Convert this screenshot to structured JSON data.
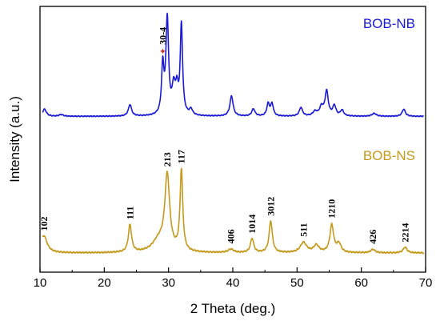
{
  "chart_data": {
    "type": "line",
    "xlabel": "2 Theta (deg.)",
    "ylabel": "Intensity (a.u.)",
    "xlim": [
      10,
      70
    ],
    "x_ticks": [
      "10",
      "20",
      "30",
      "40",
      "50",
      "60",
      "70"
    ],
    "grid": false,
    "colors": {
      "BOB-NB": "#1a1ad6",
      "BOB-NS": "#c49a1c",
      "marker": "#c0392b"
    },
    "series": [
      {
        "name": "BOB-NB",
        "baseline": 0.35,
        "noise": 0.02,
        "peaks": [
          [
            10.7,
            0.25,
            0.35
          ],
          [
            13.3,
            0.06,
            0.4
          ],
          [
            24.0,
            0.4,
            0.3
          ],
          [
            29.1,
            1.65,
            0.22
          ],
          [
            29.8,
            3.3,
            0.25
          ],
          [
            30.8,
            0.9,
            0.3
          ],
          [
            31.3,
            0.8,
            0.25
          ],
          [
            32.0,
            3.1,
            0.22
          ],
          [
            33.5,
            0.2,
            0.3
          ],
          [
            39.8,
            0.7,
            0.3
          ],
          [
            43.2,
            0.25,
            0.3
          ],
          [
            45.5,
            0.42,
            0.25
          ],
          [
            46.1,
            0.42,
            0.25
          ],
          [
            50.6,
            0.3,
            0.3
          ],
          [
            52.8,
            0.15,
            0.4
          ],
          [
            53.8,
            0.3,
            0.35
          ],
          [
            54.6,
            0.85,
            0.3
          ],
          [
            55.8,
            0.35,
            0.3
          ],
          [
            57.0,
            0.2,
            0.3
          ],
          [
            62.0,
            0.1,
            0.4
          ],
          [
            66.6,
            0.25,
            0.3
          ]
        ]
      },
      {
        "name": "BOB-NS",
        "baseline": 0.25,
        "noise": 0.03,
        "peaks": [
          [
            10.6,
            0.6,
            0.6
          ],
          [
            24.0,
            0.95,
            0.3
          ],
          [
            28.5,
            0.4,
            1.2
          ],
          [
            29.8,
            2.6,
            0.45
          ],
          [
            32.0,
            2.8,
            0.25
          ],
          [
            39.7,
            0.12,
            0.5
          ],
          [
            43.0,
            0.5,
            0.3
          ],
          [
            45.9,
            1.1,
            0.3
          ],
          [
            51.0,
            0.35,
            0.6
          ],
          [
            53.0,
            0.25,
            0.5
          ],
          [
            55.4,
            0.95,
            0.35
          ],
          [
            56.5,
            0.3,
            0.4
          ],
          [
            61.8,
            0.12,
            0.4
          ],
          [
            66.8,
            0.2,
            0.35
          ]
        ]
      }
    ],
    "legend": [
      "BOB-NB",
      "BOB-NS"
    ],
    "annotations": [
      {
        "text": "30-4",
        "x": 29.1,
        "series": "BOB-NB",
        "marker": "star"
      },
      {
        "text": "102",
        "x": 10.6,
        "series": "BOB-NS"
      },
      {
        "text": "111",
        "x": 24.0,
        "series": "BOB-NS"
      },
      {
        "text": "213",
        "x": 29.8,
        "series": "BOB-NS"
      },
      {
        "text": "117",
        "x": 32.0,
        "series": "BOB-NS"
      },
      {
        "text": "406",
        "x": 39.7,
        "series": "BOB-NS"
      },
      {
        "text": "1014",
        "x": 43.0,
        "series": "BOB-NS"
      },
      {
        "text": "3012",
        "x": 45.9,
        "series": "BOB-NS"
      },
      {
        "text": "511",
        "x": 51.0,
        "series": "BOB-NS"
      },
      {
        "text": "1210",
        "x": 55.4,
        "series": "BOB-NS"
      },
      {
        "text": "426",
        "x": 61.8,
        "series": "BOB-NS"
      },
      {
        "text": "2214",
        "x": 66.8,
        "series": "BOB-NS"
      }
    ]
  }
}
